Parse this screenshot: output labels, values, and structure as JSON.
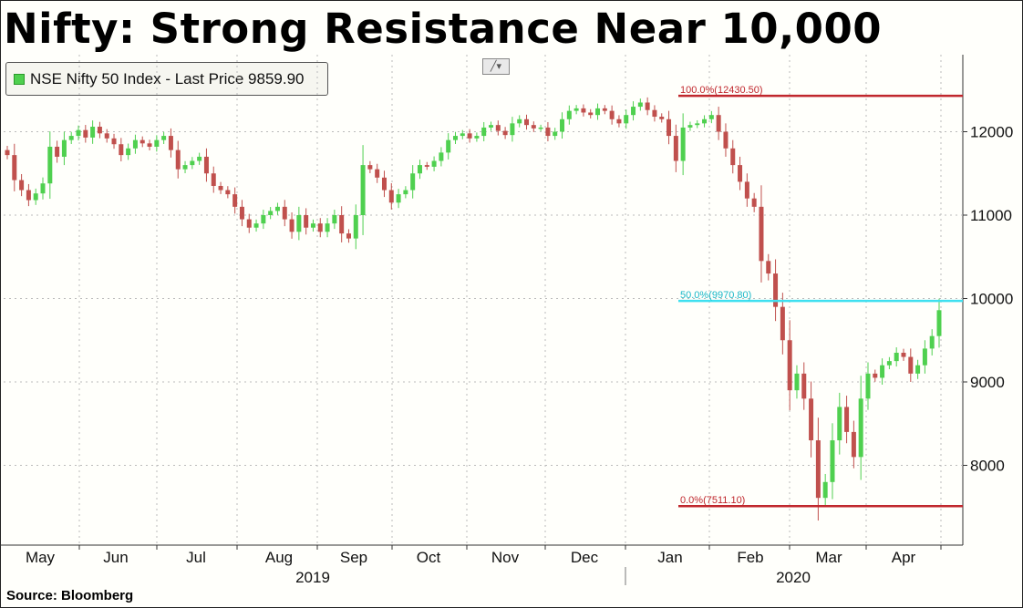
{
  "header": {
    "title": "Nifty: Strong Resistance Near 10,000"
  },
  "legend": {
    "label": "NSE Nifty 50 Index - Last Price 9859.90",
    "swatch_color": "#4fd04f"
  },
  "footer": {
    "source": "Source: Bloomberg"
  },
  "toolbar": {
    "chart_type_icon": "line-chart-icon"
  },
  "chart_data": {
    "type": "candlestick",
    "title": "Nifty: Strong Resistance Near 10,000",
    "series_name": "NSE Nifty 50 Index - Last Price 9859.90",
    "last_price": 9859.9,
    "y_ticks": [
      8000,
      9000,
      10000,
      11000,
      12000
    ],
    "y_tick_labels": [
      "8000",
      "9000",
      "10000",
      "11000",
      "12000"
    ],
    "ylim": [
      7100,
      12950
    ],
    "y_axis_side": "right",
    "grid": true,
    "x_months": [
      "May",
      "Jun",
      "Jul",
      "Aug",
      "Sep",
      "Oct",
      "Nov",
      "Dec",
      "Jan",
      "Feb",
      "Mar",
      "Apr"
    ],
    "x_years": [
      "2019",
      "2020"
    ],
    "colors": {
      "up": "#4fd04f",
      "down": "#c0504d",
      "fib_high": "#c0272d",
      "fib_mid": "#3fe0f0",
      "fib_low": "#c0272d"
    },
    "fib_levels": [
      {
        "label": "100.0%(12430.50)",
        "value": 12430.5
      },
      {
        "label": "50.0%(9970.80)",
        "value": 9970.8
      },
      {
        "label": "0.0%(7511.10)",
        "value": 7511.1
      }
    ],
    "close_series": [
      11720,
      11420,
      11300,
      11180,
      11260,
      11380,
      11820,
      11700,
      11900,
      11950,
      12020,
      11930,
      12060,
      11980,
      11920,
      11850,
      11720,
      11800,
      11900,
      11860,
      11820,
      11900,
      11950,
      11780,
      11550,
      11600,
      11650,
      11700,
      11500,
      11350,
      11300,
      11250,
      11100,
      10950,
      10850,
      10900,
      11000,
      11050,
      11100,
      10950,
      10800,
      11000,
      10850,
      10900,
      10800,
      10900,
      11000,
      10780,
      10720,
      11000,
      11600,
      11550,
      11450,
      11300,
      11150,
      11250,
      11300,
      11500,
      11600,
      11580,
      11650,
      11750,
      11900,
      11950,
      11980,
      11920,
      11950,
      12050,
      12080,
      12010,
      11960,
      12100,
      12150,
      12080,
      12040,
      12050,
      11950,
      12000,
      12150,
      12250,
      12280,
      12230,
      12200,
      12280,
      12250,
      12150,
      12100,
      12200,
      12300,
      12350,
      12260,
      12180,
      12150,
      11950,
      11650,
      12050,
      12080,
      12100,
      12150,
      12200,
      12000,
      11800,
      11600,
      11400,
      11200,
      11100,
      10450,
      10300,
      9900,
      9500,
      8900,
      9100,
      8800,
      8300,
      7610,
      7800,
      8300,
      8700,
      8400,
      8100,
      8800,
      9100,
      9050,
      9200,
      9250,
      9350,
      9300,
      9100,
      9200,
      9400,
      9550,
      9860
    ]
  }
}
